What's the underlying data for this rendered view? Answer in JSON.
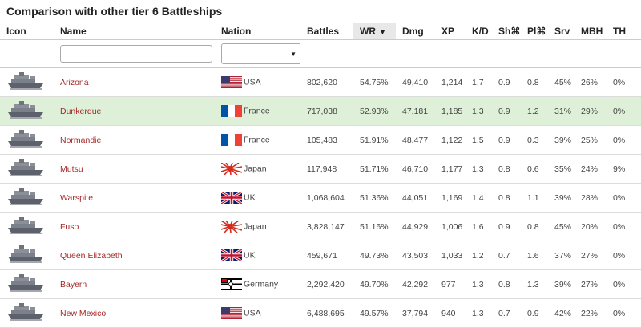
{
  "title": "Comparison with other tier 6 Battleships",
  "columns": {
    "icon": "Icon",
    "name": "Name",
    "nation": "Nation",
    "battles": "Battles",
    "wr": "WR",
    "dmg": "Dmg",
    "xp": "XP",
    "kd": "K/D",
    "sh": "Sh⌘",
    "pl": "Pl⌘",
    "srv": "Srv",
    "mbh": "MBH",
    "th": "TH"
  },
  "sorted_column": "wr",
  "sort_arrow": "▼",
  "filter": {
    "name_value": "",
    "nation_value": ""
  },
  "rows": [
    {
      "name": "Arizona",
      "flag": "usa",
      "nation": "USA",
      "battles": "802,620",
      "wr": "54.75%",
      "dmg": "49,410",
      "xp": "1,214",
      "kd": "1.7",
      "sh": "0.9",
      "pl": "0.8",
      "srv": "45%",
      "mbh": "26%",
      "th": "0%"
    },
    {
      "name": "Dunkerque",
      "flag": "france",
      "nation": "France",
      "battles": "717,038",
      "wr": "52.93%",
      "dmg": "47,181",
      "xp": "1,185",
      "kd": "1.3",
      "sh": "0.9",
      "pl": "1.2",
      "srv": "31%",
      "mbh": "29%",
      "th": "0%",
      "highlight": true
    },
    {
      "name": "Normandie",
      "flag": "france",
      "nation": "France",
      "battles": "105,483",
      "wr": "51.91%",
      "dmg": "48,477",
      "xp": "1,122",
      "kd": "1.5",
      "sh": "0.9",
      "pl": "0.3",
      "srv": "39%",
      "mbh": "25%",
      "th": "0%"
    },
    {
      "name": "Mutsu",
      "flag": "japan",
      "nation": "Japan",
      "battles": "117,948",
      "wr": "51.71%",
      "dmg": "46,710",
      "xp": "1,177",
      "kd": "1.3",
      "sh": "0.8",
      "pl": "0.6",
      "srv": "35%",
      "mbh": "24%",
      "th": "9%"
    },
    {
      "name": "Warspite",
      "flag": "uk",
      "nation": "UK",
      "battles": "1,068,604",
      "wr": "51.36%",
      "dmg": "44,051",
      "xp": "1,169",
      "kd": "1.4",
      "sh": "0.8",
      "pl": "1.1",
      "srv": "39%",
      "mbh": "28%",
      "th": "0%"
    },
    {
      "name": "Fuso",
      "flag": "japan",
      "nation": "Japan",
      "battles": "3,828,147",
      "wr": "51.16%",
      "dmg": "44,929",
      "xp": "1,006",
      "kd": "1.6",
      "sh": "0.9",
      "pl": "0.8",
      "srv": "45%",
      "mbh": "20%",
      "th": "0%"
    },
    {
      "name": "Queen Elizabeth",
      "flag": "uk",
      "nation": "UK",
      "battles": "459,671",
      "wr": "49.73%",
      "dmg": "43,503",
      "xp": "1,033",
      "kd": "1.2",
      "sh": "0.7",
      "pl": "1.6",
      "srv": "37%",
      "mbh": "27%",
      "th": "0%"
    },
    {
      "name": "Bayern",
      "flag": "germany",
      "nation": "Germany",
      "battles": "2,292,420",
      "wr": "49.70%",
      "dmg": "42,292",
      "xp": "977",
      "kd": "1.3",
      "sh": "0.8",
      "pl": "1.3",
      "srv": "39%",
      "mbh": "27%",
      "th": "0%"
    },
    {
      "name": "New Mexico",
      "flag": "usa",
      "nation": "USA",
      "battles": "6,488,695",
      "wr": "49.57%",
      "dmg": "37,794",
      "xp": "940",
      "kd": "1.3",
      "sh": "0.7",
      "pl": "0.9",
      "srv": "42%",
      "mbh": "22%",
      "th": "0%"
    }
  ]
}
